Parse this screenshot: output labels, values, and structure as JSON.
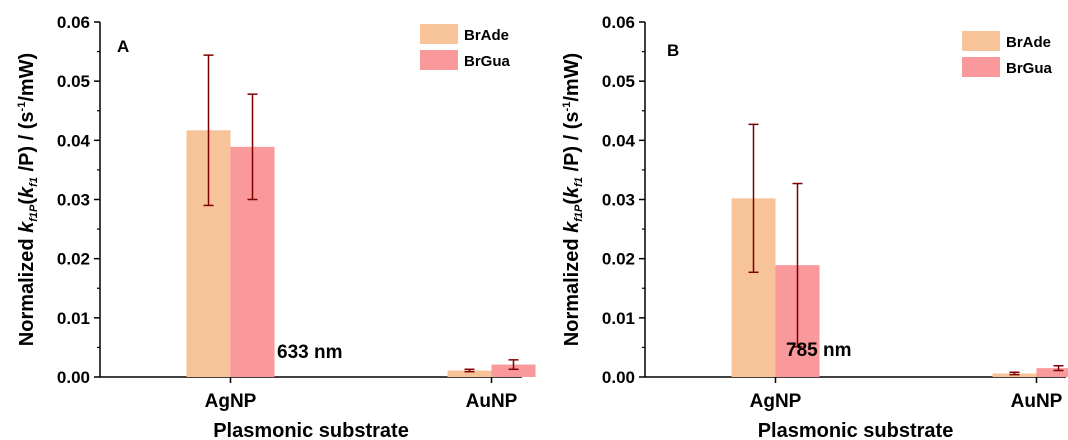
{
  "colors": {
    "BrAde": "#f7c49a",
    "BrGua": "#f9999b",
    "error_bar": "#7f0000",
    "axis": "#000000"
  },
  "chart_data": [
    {
      "type": "bar",
      "panel_label": "A",
      "annotation": "633 nm",
      "categories": [
        "AgNP",
        "AuNP"
      ],
      "series": [
        {
          "name": "BrAde",
          "values": [
            0.0417,
            0.0011
          ],
          "errors": [
            0.0127,
            0.0002
          ]
        },
        {
          "name": "BrGua",
          "values": [
            0.0389,
            0.0021
          ],
          "errors": [
            0.0089,
            0.0008
          ]
        }
      ],
      "xlabel": "Plasmonic substrate",
      "ylabel": "Normalized k_f1P(k_f1/P) / (s^-1/mW)",
      "ylim": [
        0,
        0.06
      ],
      "yticks": [
        "0.00",
        "0.01",
        "0.02",
        "0.03",
        "0.04",
        "0.05",
        "0.06"
      ],
      "legend_position": "top-right",
      "grid": false
    },
    {
      "type": "bar",
      "panel_label": "B",
      "annotation": "785 nm",
      "categories": [
        "AgNP",
        "AuNP"
      ],
      "series": [
        {
          "name": "BrAde",
          "values": [
            0.0302,
            0.0006
          ],
          "errors": [
            0.0125,
            0.0002
          ]
        },
        {
          "name": "BrGua",
          "values": [
            0.0189,
            0.0015
          ],
          "errors": [
            0.0138,
            0.0004
          ]
        }
      ],
      "xlabel": "Plasmonic substrate",
      "ylabel": "Normalized k_f1P(k_f1/P) / (s^-1/mW)",
      "ylim": [
        0,
        0.06
      ],
      "yticks": [
        "0.00",
        "0.01",
        "0.02",
        "0.03",
        "0.04",
        "0.05",
        "0.06"
      ],
      "legend_position": "top-right",
      "grid": false
    }
  ]
}
